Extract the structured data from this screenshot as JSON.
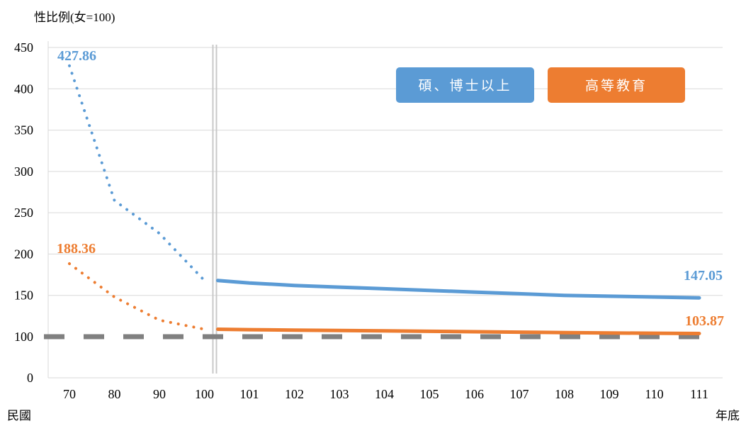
{
  "chart_data": {
    "type": "line",
    "y_unit_label": "性比例(女=100)",
    "x_left_label": "民國",
    "x_right_label": "年底",
    "categories": [
      "70",
      "80",
      "90",
      "100",
      "101",
      "102",
      "103",
      "104",
      "105",
      "106",
      "107",
      "108",
      "109",
      "110",
      "111"
    ],
    "yticks": [
      "0",
      "100",
      "150",
      "200",
      "250",
      "300",
      "350",
      "400",
      "450"
    ],
    "ylim": [
      0,
      450
    ],
    "y_axis_note": "axis break between 0 and 100",
    "reference_line": {
      "y": 100,
      "style": "dashed",
      "color": "#808080"
    },
    "period_separator": {
      "between": [
        "100",
        "101"
      ],
      "style": "double-line"
    },
    "series": [
      {
        "name": "碩、博士以上",
        "color": "#5B9BD5",
        "values": [
          427.86,
          265,
          225,
          168,
          165,
          162,
          160,
          158,
          156,
          154,
          152,
          150,
          149,
          148,
          147.05
        ],
        "start_label": "427.86",
        "end_label": "147.05"
      },
      {
        "name": "高等教育",
        "color": "#ED7D31",
        "values": [
          188.36,
          148,
          120,
          109,
          108.5,
          108,
          107.5,
          107,
          106.5,
          106,
          105.5,
          105,
          104.5,
          104.2,
          103.87
        ],
        "start_label": "188.36",
        "end_label": "103.87"
      }
    ],
    "legend_placement": "top-right",
    "grid": true
  }
}
